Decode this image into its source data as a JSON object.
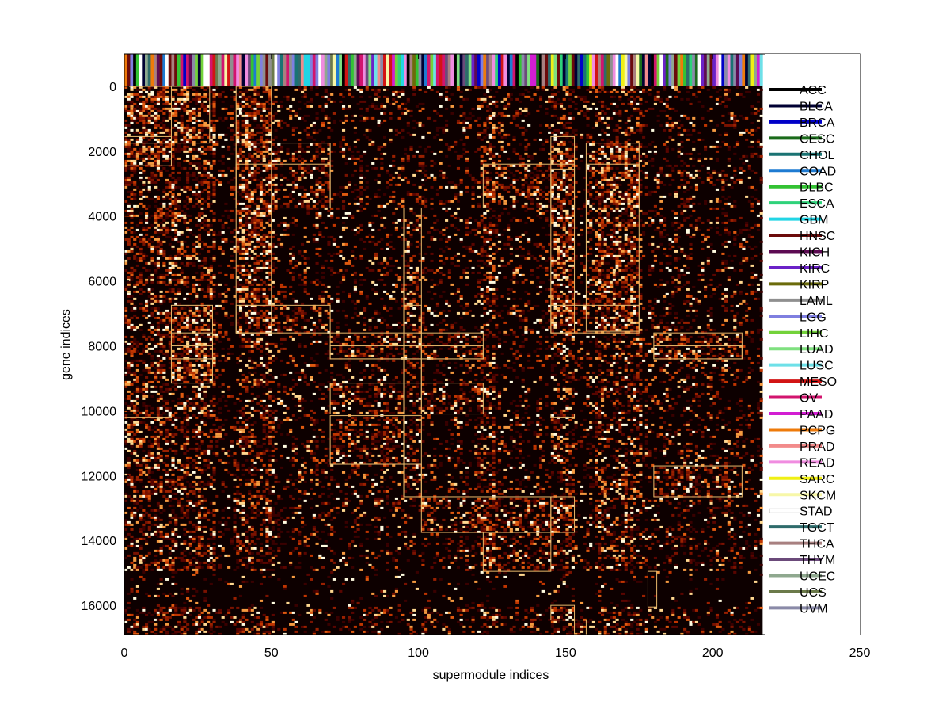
{
  "chart_data": {
    "type": "heatmap",
    "title": "",
    "xlabel": "supermodule indices",
    "ylabel": "gene indices",
    "xlim": [
      0,
      250
    ],
    "ylim": [
      16900,
      -1000
    ],
    "x_ticks": [
      0,
      50,
      100,
      150,
      200,
      250
    ],
    "y_ticks": [
      0,
      2000,
      4000,
      6000,
      8000,
      10000,
      12000,
      14000,
      16000
    ],
    "heatmap_extent": {
      "x": [
        0,
        217
      ],
      "y": [
        0,
        16900
      ]
    },
    "colormap": "hot",
    "colorbar_strip": {
      "position": "top",
      "y": [
        -1000,
        0
      ]
    },
    "legend": {
      "placement": "right",
      "entries": [
        {
          "name": "ACC",
          "color": "#000000"
        },
        {
          "name": "BLCA",
          "color": "#000033"
        },
        {
          "name": "BRCA",
          "color": "#0000c8"
        },
        {
          "name": "CESC",
          "color": "#1a6b1a"
        },
        {
          "name": "CHOL",
          "color": "#1a7373"
        },
        {
          "name": "COAD",
          "color": "#1e7bd2"
        },
        {
          "name": "DLBC",
          "color": "#33c233"
        },
        {
          "name": "ESCA",
          "color": "#2ed27a"
        },
        {
          "name": "GBM",
          "color": "#22d5e5"
        },
        {
          "name": "HNSC",
          "color": "#6b0a0a"
        },
        {
          "name": "KICH",
          "color": "#5c0a52"
        },
        {
          "name": "KIRC",
          "color": "#6b22c8"
        },
        {
          "name": "KIRP",
          "color": "#6b6b0a"
        },
        {
          "name": "LAML",
          "color": "#8f8f8f"
        },
        {
          "name": "LGG",
          "color": "#7f7fe0"
        },
        {
          "name": "LIHC",
          "color": "#73d23a"
        },
        {
          "name": "LUAD",
          "color": "#7fe07f"
        },
        {
          "name": "LUSC",
          "color": "#6ee0e8"
        },
        {
          "name": "MESO",
          "color": "#d21414"
        },
        {
          "name": "OV",
          "color": "#d2146e"
        },
        {
          "name": "PAAD",
          "color": "#d21ed2"
        },
        {
          "name": "PCPG",
          "color": "#ee7a0a"
        },
        {
          "name": "PRAD",
          "color": "#f28b8b"
        },
        {
          "name": "READ",
          "color": "#f08ce0"
        },
        {
          "name": "SARC",
          "color": "#f0f014"
        },
        {
          "name": "SKCM",
          "color": "#f7f7a8"
        },
        {
          "name": "STAD",
          "color": "#ffffff"
        },
        {
          "name": "TGCT",
          "color": "#2e6b6b"
        },
        {
          "name": "THCA",
          "color": "#a88080"
        },
        {
          "name": "THYM",
          "color": "#6b4a7a"
        },
        {
          "name": "UCEC",
          "color": "#8fa88f"
        },
        {
          "name": "UCS",
          "color": "#6b7a4a"
        },
        {
          "name": "UVM",
          "color": "#8a8aa8"
        }
      ]
    },
    "bright_columns": [
      [
        0,
        30
      ],
      [
        38,
        50
      ],
      [
        120,
        125
      ],
      [
        145,
        152
      ],
      [
        160,
        175
      ]
    ],
    "dark_band_y": [
      14900,
      16000
    ],
    "modules": [
      {
        "x": [
          0,
          16
        ],
        "y": [
          0,
          2450
        ]
      },
      {
        "x": [
          0,
          29
        ],
        "y": [
          0,
          1750
        ]
      },
      {
        "x": [
          0,
          16
        ],
        "y": [
          1550,
          1750
        ]
      },
      {
        "x": [
          38,
          50
        ],
        "y": [
          0,
          7600
        ]
      },
      {
        "x": [
          38,
          70
        ],
        "y": [
          1750,
          3750
        ]
      },
      {
        "x": [
          38,
          70
        ],
        "y": [
          2400,
          3750
        ]
      },
      {
        "x": [
          38,
          70
        ],
        "y": [
          6750,
          7600
        ]
      },
      {
        "x": [
          16,
          30
        ],
        "y": [
          6750,
          9150
        ]
      },
      {
        "x": [
          16,
          30
        ],
        "y": [
          7600,
          8400
        ]
      },
      {
        "x": [
          16,
          30
        ],
        "y": [
          8000,
          8400
        ]
      },
      {
        "x": [
          70,
          122
        ],
        "y": [
          7600,
          8400
        ]
      },
      {
        "x": [
          70,
          122
        ],
        "y": [
          8000,
          8400
        ]
      },
      {
        "x": [
          70,
          122
        ],
        "y": [
          9150,
          10100
        ]
      },
      {
        "x": [
          95,
          101
        ],
        "y": [
          3750,
          10100
        ]
      },
      {
        "x": [
          95,
          101
        ],
        "y": [
          6750,
          10100
        ]
      },
      {
        "x": [
          0,
          16
        ],
        "y": [
          10100,
          10200
        ]
      },
      {
        "x": [
          70,
          95
        ],
        "y": [
          10150,
          11650
        ]
      },
      {
        "x": [
          95,
          101
        ],
        "y": [
          10150,
          12650
        ]
      },
      {
        "x": [
          95,
          101
        ],
        "y": [
          11650,
          12650
        ]
      },
      {
        "x": [
          101,
          145
        ],
        "y": [
          12650,
          13750
        ]
      },
      {
        "x": [
          122,
          145
        ],
        "y": [
          13750,
          14950
        ]
      },
      {
        "x": [
          122,
          153
        ],
        "y": [
          2400,
          3750
        ]
      },
      {
        "x": [
          145,
          153
        ],
        "y": [
          1550,
          7600
        ]
      },
      {
        "x": [
          145,
          153
        ],
        "y": [
          2550,
          3750
        ]
      },
      {
        "x": [
          145,
          175
        ],
        "y": [
          6750,
          7600
        ]
      },
      {
        "x": [
          157,
          175
        ],
        "y": [
          1750,
          7550
        ]
      },
      {
        "x": [
          157,
          175
        ],
        "y": [
          2400,
          3750
        ]
      },
      {
        "x": [
          145,
          153
        ],
        "y": [
          10100,
          10200
        ]
      },
      {
        "x": [
          145,
          153
        ],
        "y": [
          12650,
          13750
        ]
      },
      {
        "x": [
          145,
          153
        ],
        "y": [
          16000,
          16450
        ]
      },
      {
        "x": [
          153,
          157
        ],
        "y": [
          16450,
          16900
        ]
      },
      {
        "x": [
          178,
          181
        ],
        "y": [
          14950,
          16050
        ]
      },
      {
        "x": [
          180,
          210
        ],
        "y": [
          7600,
          8400
        ]
      },
      {
        "x": [
          180,
          210
        ],
        "y": [
          8000,
          8400
        ]
      },
      {
        "x": [
          180,
          210
        ],
        "y": [
          11700,
          12650
        ]
      }
    ],
    "colors": {
      "box": "#e8b86a",
      "background": "#0d0000"
    }
  }
}
